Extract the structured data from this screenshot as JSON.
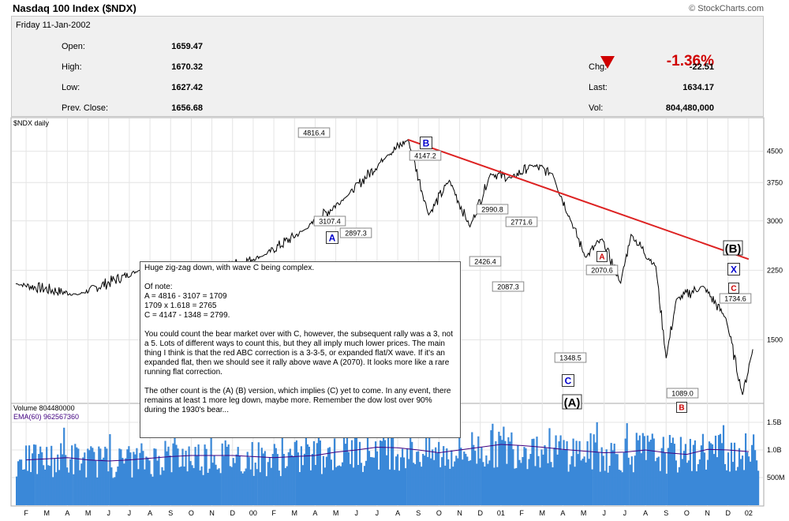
{
  "header": {
    "title": "Nasdaq 100 Index ($NDX)",
    "copyright": "© StockCharts.com"
  },
  "quote": {
    "date": "Friday   11-Jan-2002",
    "left": [
      {
        "label": "Open:",
        "value": "1659.47"
      },
      {
        "label": "High:",
        "value": "1670.32"
      },
      {
        "label": "Low:",
        "value": "1627.42"
      },
      {
        "label": "Prev. Close:",
        "value": "1656.68"
      }
    ],
    "right": [
      {
        "label": "Chg:",
        "value": "-22.51"
      },
      {
        "label": "Last:",
        "value": "1634.17"
      },
      {
        "label": "Vol:",
        "value": "804,480,000"
      }
    ],
    "pct_change": "-1.36%",
    "down_color": "#d00000"
  },
  "note": {
    "lines": [
      "Huge zig-zag down, with wave C being complex.",
      "",
      "Of note:",
      "A = 4816 - 3107 = 1709",
      "1709 x 1.618 = 2765",
      "C = 4147 - 1348 = 2799.",
      "",
      "You could count the bear market over with C, however, the subsequent rally was a 3, not a 5. Lots of different ways to count this, but they all imply much lower prices. The main thing I think is that the red ABC correction is a 3-3-5, or expanded flat/X wave. If it's an expanded flat, then we should see it rally above wave A (2070). It looks more like a rare running flat correction.",
      "",
      "The other count is the (A) (B) version, which implies (C) yet to come. In any event, there remains at least 1 more leg down, maybe more. Remember the dow lost over 90% during the 1930's bear..."
    ]
  },
  "chart_data": {
    "type": "line",
    "title": "$NDX daily",
    "y_scale": "log",
    "ylim": [
      1050,
      5400
    ],
    "y_ticks": [
      4500,
      3750,
      3000,
      2250,
      1500
    ],
    "x_tick_labels": [
      "F",
      "M",
      "A",
      "M",
      "J",
      "J",
      "A",
      "S",
      "O",
      "N",
      "D",
      "00",
      "F",
      "M",
      "A",
      "M",
      "J",
      "J",
      "A",
      "S",
      "O",
      "N",
      "D",
      "01",
      "F",
      "M",
      "A",
      "M",
      "J",
      "J",
      "A",
      "S",
      "O",
      "N",
      "D",
      "02"
    ],
    "series": [
      {
        "x": [
          0,
          3,
          6,
          9,
          12,
          14,
          16,
          18,
          19,
          20,
          21,
          22,
          23,
          24,
          25,
          26,
          26.9,
          27.6,
          28.4,
          29.3,
          29.8,
          31,
          31.5,
          32,
          33.3,
          34.4,
          35.2,
          35.7
        ],
        "values": [
          2080,
          1950,
          2250,
          2200,
          2450,
          2850,
          3450,
          4400,
          4816,
          3107,
          3800,
          2897,
          3950,
          3850,
          4147,
          3950,
          2990,
          2426,
          2700,
          2087,
          2771,
          2300,
          1348,
          1900,
          2050,
          1700,
          1089,
          1420
        ],
        "color": "#000000"
      }
    ],
    "trendline": {
      "from": [
        19,
        4816
      ],
      "to": [
        35.5,
        2400
      ],
      "color": "#dd2222"
    },
    "annotations": [
      {
        "text": "4816.4"
      },
      {
        "text": "3107.4"
      },
      {
        "text": "2897.3"
      },
      {
        "text": "4147.2"
      },
      {
        "text": "2990.8"
      },
      {
        "text": "2426.4"
      },
      {
        "text": "2771.6"
      },
      {
        "text": "2087.3"
      },
      {
        "text": "1348.5"
      },
      {
        "text": "2070.6"
      },
      {
        "text": "1089.0"
      },
      {
        "text": "1734.6"
      }
    ],
    "wave_labels": [
      {
        "text": "A",
        "color": "#0000cc"
      },
      {
        "text": "B",
        "color": "#0000cc"
      },
      {
        "text": "C",
        "color": "#0000cc"
      },
      {
        "text": "(A)",
        "color": "#000000"
      },
      {
        "text": "A",
        "color": "#cc0000"
      },
      {
        "text": "B",
        "color": "#cc0000"
      },
      {
        "text": "C",
        "color": "#cc0000"
      },
      {
        "text": "X",
        "color": "#0000cc"
      },
      {
        "text": "(B)",
        "color": "#000000"
      }
    ],
    "volume": {
      "label_volume": "Volume  804480000",
      "label_ema": "EMA(60) 962567360",
      "ylim": [
        0,
        1800
      ],
      "y_ticks": [
        1.5,
        1.0,
        0.5
      ],
      "y_tick_labels": [
        "1.5B",
        "1.0B",
        "500M"
      ],
      "bar_color": "#3a88d8",
      "ema_color": "#400080",
      "ema_values": [
        820,
        840,
        860,
        820,
        800,
        820,
        850,
        880,
        900,
        900,
        900,
        880,
        860,
        880,
        900,
        960,
        1000,
        1050,
        1040,
        1000,
        950,
        1000,
        1050,
        1100,
        1080,
        1050,
        1010,
        980,
        950,
        960,
        1000,
        950,
        920,
        1010,
        1000,
        970
      ]
    }
  }
}
